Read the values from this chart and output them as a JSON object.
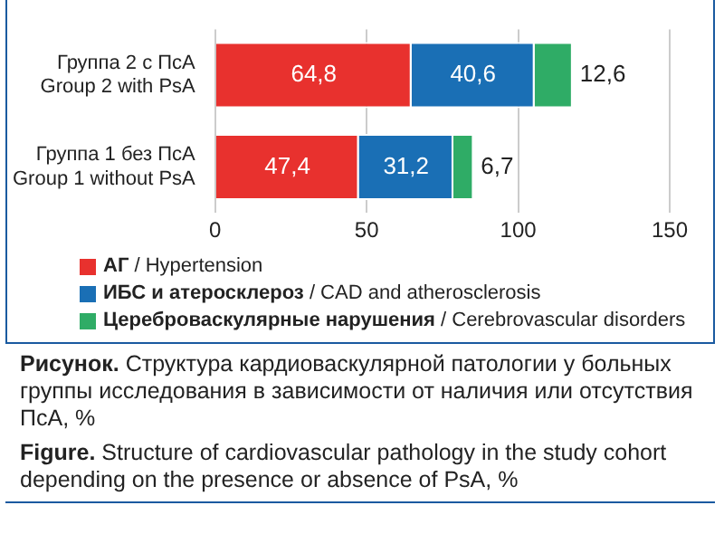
{
  "chart_data": {
    "type": "bar",
    "orientation": "horizontal",
    "stacked": true,
    "categories": [
      "Группа 2 с ПсА\nGroup 2 with PsA",
      "Группа 1 без ПсА\nGroup 1 without PsA"
    ],
    "series": [
      {
        "name": "АГ / Hypertension",
        "color": "#e8312e",
        "values": [
          64.8,
          47.4
        ],
        "value_labels": [
          "64,8",
          "47,4"
        ]
      },
      {
        "name": "ИБС и атеросклероз / CAD and atherosclerosis",
        "color": "#1a6fb5",
        "values": [
          40.6,
          31.2
        ],
        "value_labels": [
          "40,6",
          "31,2"
        ]
      },
      {
        "name": "Цереброваскулярные нарушения / Cerebrovascular disorders",
        "color": "#2fac66",
        "values": [
          12.6,
          6.7
        ],
        "value_labels": [
          "12,6",
          "6,7"
        ]
      }
    ],
    "xlim": [
      0,
      150
    ],
    "xticks": [
      0,
      50,
      100,
      150
    ],
    "grid": "x",
    "legend": "bottom",
    "annotations": [
      "Рисунок. Структура кардиоваскулярной патологии у больных группы исследования в зависимости от наличия или отсутствия ПсА, %",
      "Figure. Structure of cardiovascular pathology in the study cohort depending on the presence or absence of PsA, %"
    ]
  }
}
